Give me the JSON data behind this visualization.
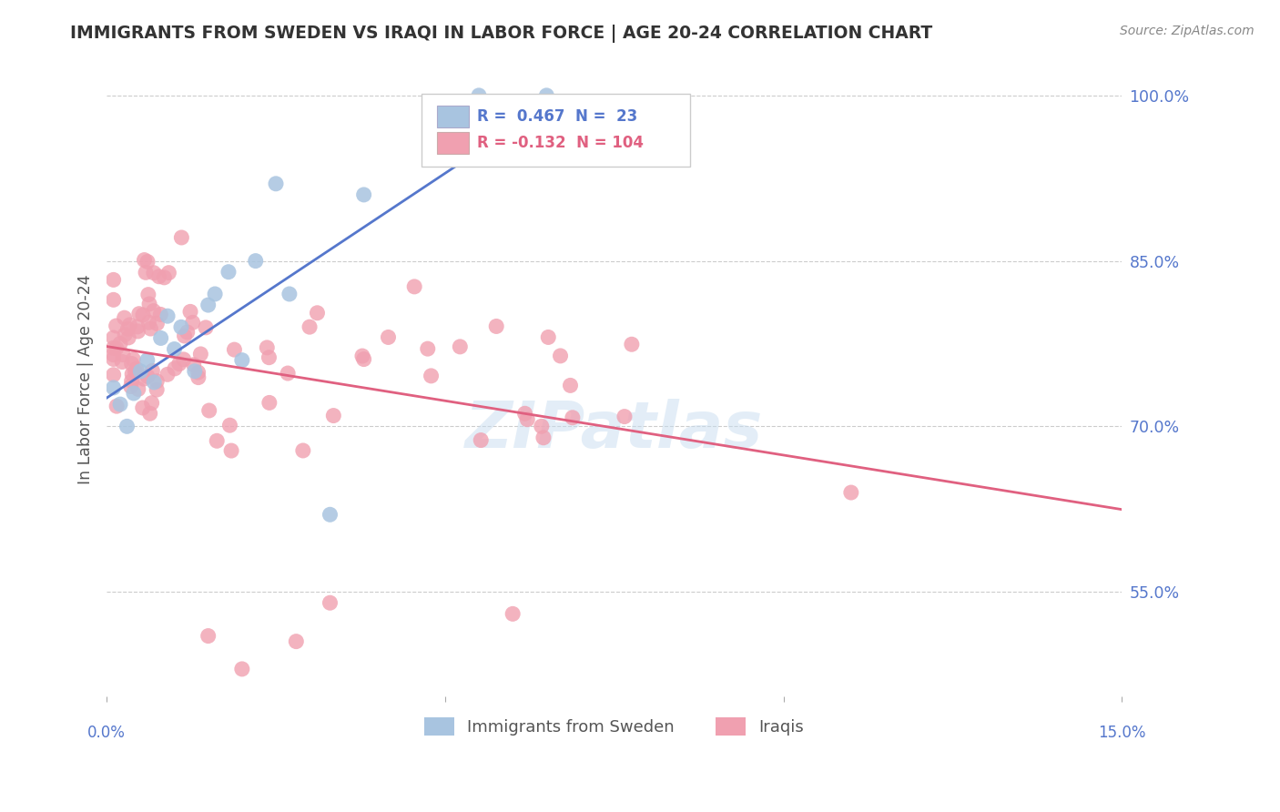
{
  "title": "IMMIGRANTS FROM SWEDEN VS IRAQI IN LABOR FORCE | AGE 20-24 CORRELATION CHART",
  "source": "Source: ZipAtlas.com",
  "ylabel": "In Labor Force | Age 20-24",
  "ytick_labels": [
    "55.0%",
    "70.0%",
    "85.0%",
    "100.0%"
  ],
  "ytick_values": [
    0.55,
    0.7,
    0.85,
    1.0
  ],
  "xlim": [
    0.0,
    0.15
  ],
  "ylim": [
    0.455,
    1.03
  ],
  "grid_color": "#cccccc",
  "background_color": "#ffffff",
  "sweden_color": "#a8c4e0",
  "iraq_color": "#f0a0b0",
  "sweden_line_color": "#5577cc",
  "iraq_line_color": "#e06080",
  "r_sweden": 0.467,
  "n_sweden": 23,
  "r_iraq": -0.132,
  "n_iraq": 104,
  "legend_sweden_fill": "#a8c4e0",
  "legend_iraq_fill": "#f0a0b0",
  "title_color": "#333333",
  "tick_label_color": "#5577cc",
  "watermark_color": "#c8ddf0"
}
